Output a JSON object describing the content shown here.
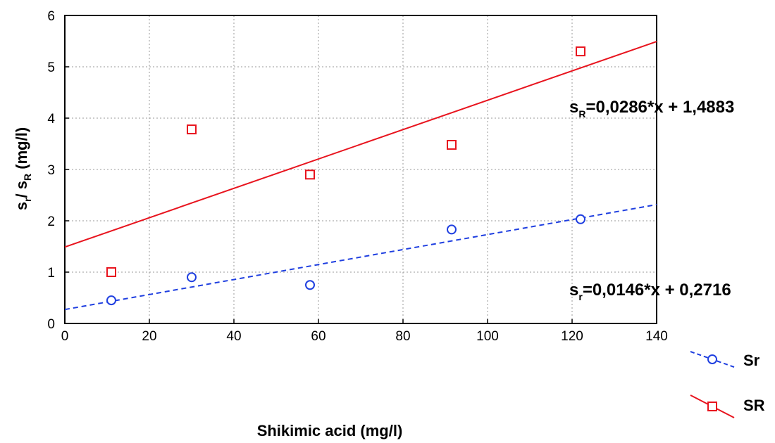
{
  "chart_data": {
    "type": "scatter",
    "xlabel": "Shikimic acid (mg/l)",
    "ylabel": {
      "s1": "s",
      "sub1": "r",
      "mid": "/ s",
      "sub2": "R",
      "end": " (mg/l)"
    },
    "xlim": [
      0,
      140
    ],
    "ylim": [
      0,
      6
    ],
    "xticks": [
      "0",
      "20",
      "40",
      "60",
      "80",
      "100",
      "120",
      "140"
    ],
    "yticks": [
      "0",
      "1",
      "2",
      "3",
      "4",
      "5",
      "6"
    ],
    "grid": true,
    "legend_position": "bottom-right",
    "series": [
      {
        "name": "Sr",
        "color": "#1f3fe0",
        "marker": "circle",
        "x": [
          11,
          30,
          58,
          91.5,
          122
        ],
        "y": [
          0.45,
          0.9,
          0.75,
          1.83,
          2.03
        ],
        "fit": {
          "slope": 0.0146,
          "intercept": 0.2716,
          "style": "dashed"
        }
      },
      {
        "name": "SR",
        "color": "#e8141e",
        "marker": "square",
        "x": [
          11,
          30,
          58,
          91.5,
          122
        ],
        "y": [
          1.0,
          3.78,
          2.9,
          3.48,
          5.3
        ],
        "fit": {
          "slope": 0.0286,
          "intercept": 1.4883,
          "style": "solid"
        }
      }
    ],
    "annotations": {
      "sR": {
        "s": "s",
        "sub": "R",
        "rest": "=0,0286*x + 1,4883"
      },
      "sr": {
        "s": "s",
        "sub": "r",
        "rest": "=0,0146*x + 0,2716"
      }
    }
  }
}
